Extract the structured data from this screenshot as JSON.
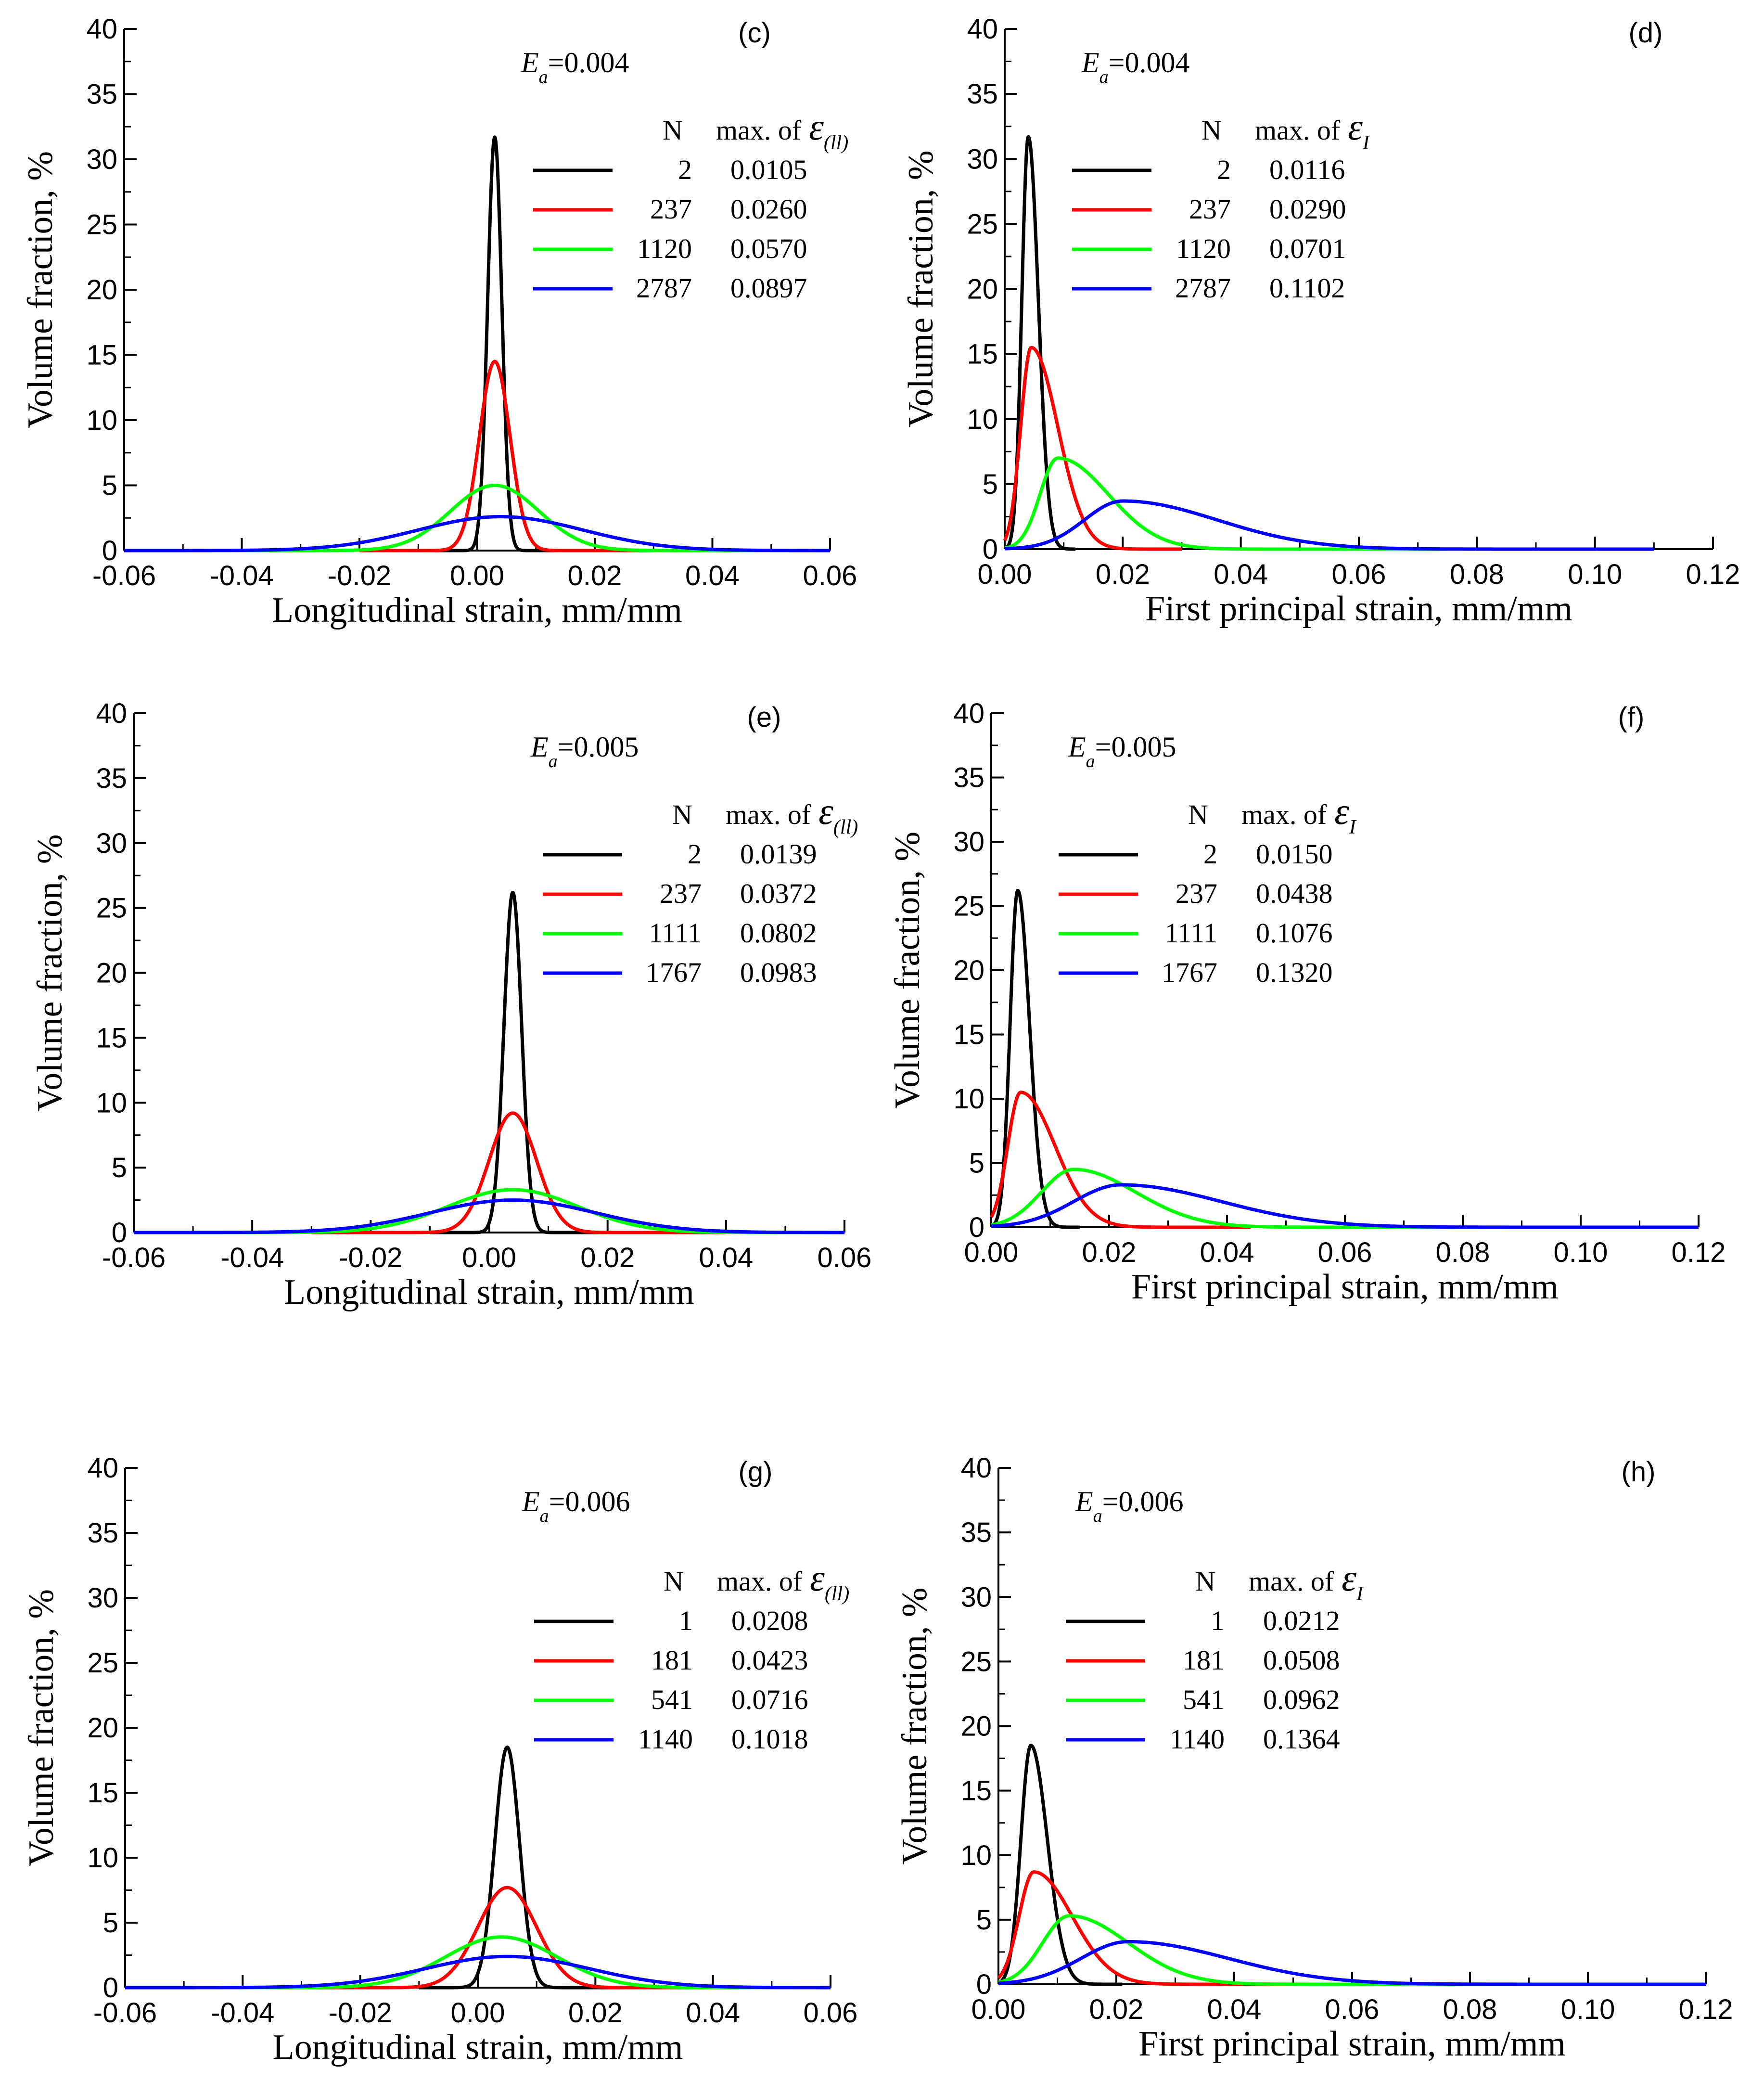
{
  "figure": {
    "colors": {
      "N1": "#000000",
      "N2": "#ff0000",
      "N3": "#00ff00",
      "N4": "#0000ff"
    }
  },
  "chart_data": [
    {
      "id": "c",
      "panel_label": "(c)",
      "type": "line",
      "title": "E_a=0.004",
      "ea_symbol": "E",
      "ea_sub": "a",
      "ea_value": "=0.004",
      "xlabel": "Longitudinal strain, mm/mm",
      "ylabel": "Volume fraction, %",
      "xlim": [
        -0.06,
        0.06
      ],
      "ylim": [
        0,
        40
      ],
      "xticks": [
        -0.06,
        -0.04,
        -0.02,
        0.0,
        0.02,
        0.04,
        0.06
      ],
      "xtick_labels": [
        "-0.06",
        "-0.04",
        "-0.02",
        "0.00",
        "0.02",
        "0.04",
        "0.06"
      ],
      "yticks": [
        0,
        5,
        10,
        15,
        20,
        25,
        30,
        35,
        40
      ],
      "ytick_labels": [
        "0",
        "5",
        "10",
        "15",
        "20",
        "25",
        "30",
        "35",
        "40"
      ],
      "legend": {
        "header_n": "N",
        "header_max": "max. of",
        "header_symbol": "ε",
        "header_sub": "(ll)",
        "placement": "top-right"
      },
      "series": [
        {
          "name": "2",
          "max": "0.0105",
          "color": "#000000",
          "peak_x": 0.003,
          "peak_y": 31.7,
          "sigma_left": 0.0012,
          "sigma_right": 0.0012,
          "x_min": -0.01,
          "x_max": 0.02
        },
        {
          "name": "237",
          "max": "0.0260",
          "color": "#ff0000",
          "peak_x": 0.003,
          "peak_y": 14.5,
          "sigma_left": 0.0026,
          "sigma_right": 0.0026,
          "x_min": -0.02,
          "x_max": 0.03
        },
        {
          "name": "1120",
          "max": "0.0570",
          "color": "#00ff00",
          "peak_x": 0.003,
          "peak_y": 5.0,
          "sigma_left": 0.0075,
          "sigma_right": 0.0075,
          "x_min": -0.06,
          "x_max": 0.06
        },
        {
          "name": "2787",
          "max": "0.0897",
          "color": "#0000ff",
          "peak_x": 0.004,
          "peak_y": 2.6,
          "sigma_left": 0.014,
          "sigma_right": 0.014,
          "x_min": -0.06,
          "x_max": 0.06
        }
      ]
    },
    {
      "id": "d",
      "panel_label": "(d)",
      "type": "line",
      "title": "E_a=0.004",
      "ea_symbol": "E",
      "ea_sub": "a",
      "ea_value": "=0.004",
      "xlabel": "First principal strain, mm/mm",
      "ylabel": "Volume fraction, %",
      "xlim": [
        0.0,
        0.12
      ],
      "ylim": [
        0,
        40
      ],
      "xticks": [
        0.0,
        0.02,
        0.04,
        0.06,
        0.08,
        0.1,
        0.12
      ],
      "xtick_labels": [
        "0.00",
        "0.02",
        "0.04",
        "0.06",
        "0.08",
        "0.10",
        "0.12"
      ],
      "yticks": [
        0,
        5,
        10,
        15,
        20,
        25,
        30,
        35,
        40
      ],
      "ytick_labels": [
        "0",
        "5",
        "10",
        "15",
        "20",
        "25",
        "30",
        "35",
        "40"
      ],
      "legend": {
        "header_n": "N",
        "header_max": "max. of",
        "header_symbol": "ε",
        "header_sub": "I",
        "placement": "top-center"
      },
      "series": [
        {
          "name": "2",
          "max": "0.0116",
          "color": "#000000",
          "peak_x": 0.004,
          "peak_y": 31.7,
          "sigma_left": 0.0011,
          "sigma_right": 0.0017,
          "x_min": 0.0,
          "x_max": 0.012
        },
        {
          "name": "237",
          "max": "0.0290",
          "color": "#ff0000",
          "peak_x": 0.0045,
          "peak_y": 15.5,
          "sigma_left": 0.0018,
          "sigma_right": 0.0045,
          "x_min": 0.0,
          "x_max": 0.03
        },
        {
          "name": "1120",
          "max": "0.0701",
          "color": "#00ff00",
          "peak_x": 0.009,
          "peak_y": 7.0,
          "sigma_left": 0.003,
          "sigma_right": 0.0085,
          "x_min": 0.0,
          "x_max": 0.075
        },
        {
          "name": "2787",
          "max": "0.1102",
          "color": "#0000ff",
          "peak_x": 0.02,
          "peak_y": 3.7,
          "sigma_left": 0.0065,
          "sigma_right": 0.016,
          "x_min": 0.0,
          "x_max": 0.11
        }
      ]
    },
    {
      "id": "e",
      "panel_label": "(e)",
      "type": "line",
      "title": "E_a=0.005",
      "ea_symbol": "E",
      "ea_sub": "a",
      "ea_value": "=0.005",
      "xlabel": "Longitudinal strain, mm/mm",
      "ylabel": "Volume fraction, %",
      "xlim": [
        -0.06,
        0.06
      ],
      "ylim": [
        0,
        40
      ],
      "xticks": [
        -0.06,
        -0.04,
        -0.02,
        0.0,
        0.02,
        0.04,
        0.06
      ],
      "xtick_labels": [
        "-0.06",
        "-0.04",
        "-0.02",
        "0.00",
        "0.02",
        "0.04",
        "0.06"
      ],
      "yticks": [
        0,
        5,
        10,
        15,
        20,
        25,
        30,
        35,
        40
      ],
      "ytick_labels": [
        "0",
        "5",
        "10",
        "15",
        "20",
        "25",
        "30",
        "35",
        "40"
      ],
      "legend": {
        "header_n": "N",
        "header_max": "max. of",
        "header_symbol": "ε",
        "header_sub": "(ll)",
        "placement": "top-right"
      },
      "series": [
        {
          "name": "2",
          "max": "0.0139",
          "color": "#000000",
          "peak_x": 0.004,
          "peak_y": 26.2,
          "sigma_left": 0.0015,
          "sigma_right": 0.0015,
          "x_min": -0.01,
          "x_max": 0.02
        },
        {
          "name": "237",
          "max": "0.0372",
          "color": "#ff0000",
          "peak_x": 0.004,
          "peak_y": 9.2,
          "sigma_left": 0.004,
          "sigma_right": 0.004,
          "x_min": -0.03,
          "x_max": 0.04
        },
        {
          "name": "1111",
          "max": "0.0802",
          "color": "#00ff00",
          "peak_x": 0.004,
          "peak_y": 3.3,
          "sigma_left": 0.011,
          "sigma_right": 0.011,
          "x_min": -0.06,
          "x_max": 0.06
        },
        {
          "name": "1767",
          "max": "0.0983",
          "color": "#0000ff",
          "peak_x": 0.004,
          "peak_y": 2.5,
          "sigma_left": 0.014,
          "sigma_right": 0.014,
          "x_min": -0.06,
          "x_max": 0.06
        }
      ]
    },
    {
      "id": "f",
      "panel_label": "(f)",
      "type": "line",
      "title": "E_a=0.005",
      "ea_symbol": "E",
      "ea_sub": "a",
      "ea_value": "=0.005",
      "xlabel": "First principal strain, mm/mm",
      "ylabel": "Volume fraction, %",
      "xlim": [
        0.0,
        0.12
      ],
      "ylim": [
        0,
        40
      ],
      "xticks": [
        0.0,
        0.02,
        0.04,
        0.06,
        0.08,
        0.1,
        0.12
      ],
      "xtick_labels": [
        "0.00",
        "0.02",
        "0.04",
        "0.06",
        "0.08",
        "0.10",
        "0.12"
      ],
      "yticks": [
        0,
        5,
        10,
        15,
        20,
        25,
        30,
        35,
        40
      ],
      "ytick_labels": [
        "0",
        "5",
        "10",
        "15",
        "20",
        "25",
        "30",
        "35",
        "40"
      ],
      "legend": {
        "header_n": "N",
        "header_max": "max. of",
        "header_symbol": "ε",
        "header_sub": "I",
        "placement": "top-center"
      },
      "series": [
        {
          "name": "2",
          "max": "0.0150",
          "color": "#000000",
          "peak_x": 0.0045,
          "peak_y": 26.2,
          "sigma_left": 0.0013,
          "sigma_right": 0.002,
          "x_min": 0.0,
          "x_max": 0.015
        },
        {
          "name": "237",
          "max": "0.0438",
          "color": "#ff0000",
          "peak_x": 0.005,
          "peak_y": 10.5,
          "sigma_left": 0.0022,
          "sigma_right": 0.0058,
          "x_min": 0.0,
          "x_max": 0.044
        },
        {
          "name": "1111",
          "max": "0.1076",
          "color": "#00ff00",
          "peak_x": 0.014,
          "peak_y": 4.5,
          "sigma_left": 0.0055,
          "sigma_right": 0.0105,
          "x_min": 0.0,
          "x_max": 0.108
        },
        {
          "name": "1767",
          "max": "0.1320",
          "color": "#0000ff",
          "peak_x": 0.022,
          "peak_y": 3.3,
          "sigma_left": 0.008,
          "sigma_right": 0.017,
          "x_min": 0.0,
          "x_max": 0.12
        }
      ]
    },
    {
      "id": "g",
      "panel_label": "(g)",
      "type": "line",
      "title": "E_a=0.006",
      "ea_symbol": "E",
      "ea_sub": "a",
      "ea_value": "=0.006",
      "xlabel": "Longitudinal strain, mm/mm",
      "ylabel": "Volume fraction, %",
      "xlim": [
        -0.06,
        0.06
      ],
      "ylim": [
        0,
        40
      ],
      "xticks": [
        -0.06,
        -0.04,
        -0.02,
        0.0,
        0.02,
        0.04,
        0.06
      ],
      "xtick_labels": [
        "-0.06",
        "-0.04",
        "-0.02",
        "0.00",
        "0.02",
        "0.04",
        "0.06"
      ],
      "yticks": [
        0,
        5,
        10,
        15,
        20,
        25,
        30,
        35,
        40
      ],
      "ytick_labels": [
        "0",
        "5",
        "10",
        "15",
        "20",
        "25",
        "30",
        "35",
        "40"
      ],
      "legend": {
        "header_n": "N",
        "header_max": "max. of",
        "header_symbol": "ε",
        "header_sub": "(ll)",
        "placement": "top-right"
      },
      "series": [
        {
          "name": "1",
          "max": "0.0208",
          "color": "#000000",
          "peak_x": 0.005,
          "peak_y": 18.5,
          "sigma_left": 0.0021,
          "sigma_right": 0.0021,
          "x_min": -0.01,
          "x_max": 0.025
        },
        {
          "name": "181",
          "max": "0.0423",
          "color": "#ff0000",
          "peak_x": 0.005,
          "peak_y": 7.7,
          "sigma_left": 0.005,
          "sigma_right": 0.005,
          "x_min": -0.03,
          "x_max": 0.045
        },
        {
          "name": "541",
          "max": "0.0716",
          "color": "#00ff00",
          "peak_x": 0.004,
          "peak_y": 3.9,
          "sigma_left": 0.0095,
          "sigma_right": 0.0095,
          "x_min": -0.06,
          "x_max": 0.06
        },
        {
          "name": "1140",
          "max": "0.1018",
          "color": "#0000ff",
          "peak_x": 0.005,
          "peak_y": 2.4,
          "sigma_left": 0.014,
          "sigma_right": 0.014,
          "x_min": -0.06,
          "x_max": 0.06
        }
      ]
    },
    {
      "id": "h",
      "panel_label": "(h)",
      "type": "line",
      "title": "E_a=0.006",
      "ea_symbol": "E",
      "ea_sub": "a",
      "ea_value": "=0.006",
      "xlabel": "First principal strain, mm/mm",
      "ylabel": "Volume fraction, %",
      "xlim": [
        0.0,
        0.12
      ],
      "ylim": [
        0,
        40
      ],
      "xticks": [
        0.0,
        0.02,
        0.04,
        0.06,
        0.08,
        0.1,
        0.12
      ],
      "xtick_labels": [
        "0.00",
        "0.02",
        "0.04",
        "0.06",
        "0.08",
        "0.10",
        "0.12"
      ],
      "yticks": [
        0,
        5,
        10,
        15,
        20,
        25,
        30,
        35,
        40
      ],
      "ytick_labels": [
        "0",
        "5",
        "10",
        "15",
        "20",
        "25",
        "30",
        "35",
        "40"
      ],
      "legend": {
        "header_n": "N",
        "header_max": "max. of",
        "header_symbol": "ε",
        "header_sub": "I",
        "placement": "top-center"
      },
      "series": [
        {
          "name": "1",
          "max": "0.0212",
          "color": "#000000",
          "peak_x": 0.0055,
          "peak_y": 18.5,
          "sigma_left": 0.0017,
          "sigma_right": 0.0028,
          "x_min": 0.0,
          "x_max": 0.021
        },
        {
          "name": "181",
          "max": "0.0508",
          "color": "#ff0000",
          "peak_x": 0.006,
          "peak_y": 8.7,
          "sigma_left": 0.0025,
          "sigma_right": 0.0065,
          "x_min": 0.0,
          "x_max": 0.051
        },
        {
          "name": "541",
          "max": "0.0962",
          "color": "#00ff00",
          "peak_x": 0.012,
          "peak_y": 5.3,
          "sigma_left": 0.0045,
          "sigma_right": 0.01,
          "x_min": 0.0,
          "x_max": 0.096
        },
        {
          "name": "1140",
          "max": "0.1364",
          "color": "#0000ff",
          "peak_x": 0.022,
          "peak_y": 3.3,
          "sigma_left": 0.008,
          "sigma_right": 0.017,
          "x_min": 0.0,
          "x_max": 0.12
        }
      ]
    }
  ]
}
